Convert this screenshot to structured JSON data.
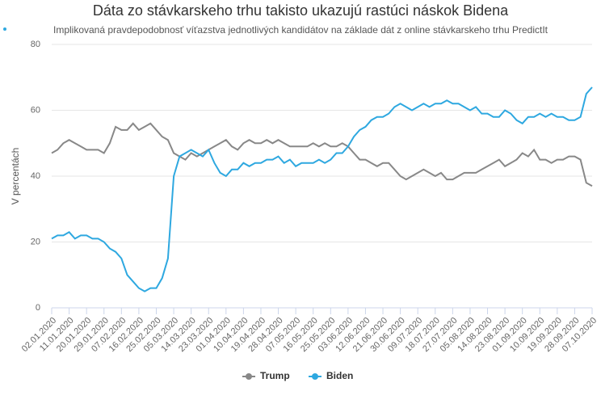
{
  "chart_data": {
    "type": "line",
    "title": "Dáta zo stávkarskeho trhu takisto ukazujú rastúci náskok Bidena",
    "subtitle": "Implikovaná pravdepodobnosť víťazstva jednotlivých kandidátov na základe dát z online stávkarskeho trhu PredictIt",
    "y_label": "V percentách",
    "categories": [
      "02.01.2020",
      null,
      null,
      "11.01.2020",
      null,
      null,
      "20.01.2020",
      null,
      null,
      "29.01.2020",
      null,
      null,
      "07.02.2020",
      null,
      null,
      "16.02.2020",
      null,
      null,
      "25.02.2020",
      null,
      null,
      "05.03.2020",
      null,
      null,
      "14.03.2020",
      null,
      null,
      "23.03.2020",
      null,
      null,
      "01.04.2020",
      null,
      null,
      "10.04.2020",
      null,
      null,
      "19.04.2020",
      null,
      null,
      "28.04.2020",
      null,
      null,
      "07.05.2020",
      null,
      null,
      "16.05.2020",
      null,
      null,
      "25.05.2020",
      null,
      null,
      "03.06.2020",
      null,
      null,
      "12.06.2020",
      null,
      null,
      "21.06.2020",
      null,
      null,
      "30.06.2020",
      null,
      null,
      "09.07.2020",
      null,
      null,
      "18.07.2020",
      null,
      null,
      "27.07.2020",
      null,
      null,
      "05.08.2020",
      null,
      null,
      "14.08.2020",
      null,
      null,
      "23.08.2020",
      null,
      null,
      "01.09.2020",
      null,
      null,
      "10.09.2020",
      null,
      null,
      "19.09.2020",
      null,
      null,
      "28.09.2020",
      null,
      null,
      "07.10.2020"
    ],
    "series": [
      {
        "name": "Trump",
        "color": "#888888",
        "values": [
          47,
          48,
          50,
          51,
          50,
          49,
          48,
          48,
          48,
          47,
          50,
          55,
          54,
          54,
          56,
          54,
          55,
          56,
          54,
          52,
          51,
          47,
          46,
          45,
          47,
          46,
          47,
          48,
          49,
          50,
          51,
          49,
          48,
          50,
          51,
          50,
          50,
          51,
          50,
          51,
          50,
          49,
          49,
          49,
          49,
          50,
          49,
          50,
          49,
          49,
          50,
          49,
          47,
          45,
          45,
          44,
          43,
          44,
          44,
          42,
          40,
          39,
          40,
          41,
          42,
          41,
          40,
          41,
          39,
          39,
          40,
          41,
          41,
          41,
          42,
          43,
          44,
          45,
          43,
          44,
          45,
          47,
          46,
          48,
          45,
          45,
          44,
          45,
          45,
          46,
          46,
          45,
          38,
          37
        ]
      },
      {
        "name": "Biden",
        "color": "#2ea8e0",
        "values": [
          21,
          22,
          22,
          23,
          21,
          22,
          22,
          21,
          21,
          20,
          18,
          17,
          15,
          10,
          8,
          6,
          5,
          6,
          6,
          9,
          15,
          40,
          46,
          47,
          48,
          47,
          46,
          48,
          44,
          41,
          40,
          42,
          42,
          44,
          43,
          44,
          44,
          45,
          45,
          46,
          44,
          45,
          43,
          44,
          44,
          44,
          45,
          44,
          45,
          47,
          47,
          49,
          52,
          54,
          55,
          57,
          58,
          58,
          59,
          61,
          62,
          61,
          60,
          61,
          62,
          61,
          62,
          62,
          63,
          62,
          62,
          61,
          60,
          61,
          59,
          59,
          58,
          58,
          60,
          59,
          57,
          56,
          58,
          58,
          59,
          58,
          59,
          58,
          58,
          57,
          57,
          58,
          65,
          67
        ]
      }
    ],
    "ylim": [
      0,
      80
    ],
    "yticks": [
      0,
      20,
      40,
      60,
      80
    ],
    "grid": true
  }
}
